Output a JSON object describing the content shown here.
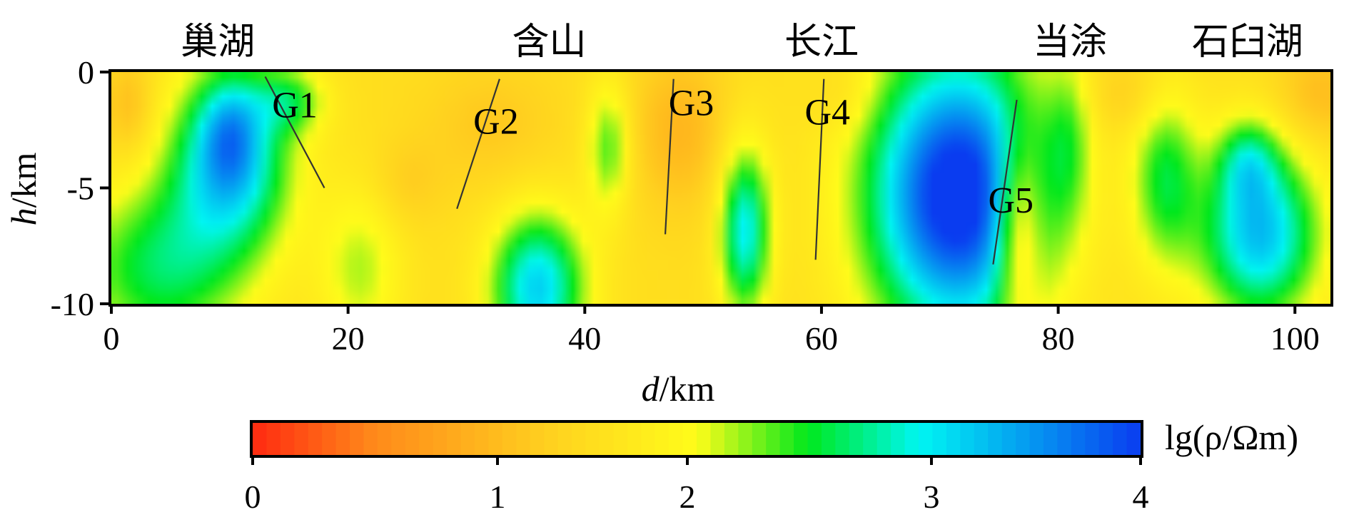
{
  "chart_data": {
    "type": "heatmap",
    "title": "",
    "place_labels": [
      {
        "text": "巢湖",
        "d": 9
      },
      {
        "text": "含山",
        "d": 37
      },
      {
        "text": "长江",
        "d": 60
      },
      {
        "text": "当涂",
        "d": 81
      },
      {
        "text": "石臼湖",
        "d": 96
      }
    ],
    "x_axis": {
      "label_var": "d",
      "label_unit": "/km",
      "range": [
        0,
        103
      ],
      "ticks": [
        0,
        20,
        40,
        60,
        80,
        100
      ],
      "tick_labels": [
        "0",
        "20",
        "40",
        "60",
        "80",
        "100"
      ]
    },
    "y_axis": {
      "label_var": "h",
      "label_unit": "/km",
      "range": [
        -10,
        0
      ],
      "ticks": [
        0,
        -5,
        -10
      ],
      "tick_labels": [
        "0",
        "-5",
        "-10"
      ]
    },
    "colorbar": {
      "label": "lg(ρ/Ωm)",
      "range": [
        0,
        4
      ],
      "ticks": [
        0,
        1,
        2,
        3,
        4
      ],
      "tick_labels": [
        "0",
        "1",
        "2",
        "3",
        "4"
      ],
      "colors": [
        "#ff2a10",
        "#ff8a1a",
        "#ffd21f",
        "#fffc1a",
        "#00e81c",
        "#00f6f2",
        "#0a3cf0"
      ],
      "stops": [
        0,
        0.55,
        1.35,
        2.0,
        2.5,
        3.0,
        4.0
      ]
    },
    "background_value": 1.55,
    "anomalies": [
      {
        "d": 1.5,
        "h": -1.5,
        "sd": 1.4,
        "sh": 1.5,
        "amp": -0.45
      },
      {
        "d": 10,
        "h": -3.8,
        "sd": 3.6,
        "sh": 2.8,
        "amp": 1.65
      },
      {
        "d": 10,
        "h": -2.5,
        "sd": 1.7,
        "sh": 1.6,
        "amp": 0.65
      },
      {
        "d": 4,
        "h": -8.5,
        "sd": 5.0,
        "sh": 2.6,
        "amp": 1.05
      },
      {
        "d": 15,
        "h": -1.2,
        "sd": 2.2,
        "sh": 1.0,
        "amp": 0.75
      },
      {
        "d": 21,
        "h": -8.5,
        "sd": 2.5,
        "sh": 2.5,
        "amp": 0.6
      },
      {
        "d": 25,
        "h": -4.8,
        "sd": 2.0,
        "sh": 1.3,
        "amp": -0.25
      },
      {
        "d": 36,
        "h": -9.3,
        "sd": 2.8,
        "sh": 2.3,
        "amp": 1.65
      },
      {
        "d": 42,
        "h": -3.2,
        "sd": 1.3,
        "sh": 2.0,
        "amp": 0.85
      },
      {
        "d": 32,
        "h": -2.3,
        "sd": 4.0,
        "sh": 2.0,
        "amp": -0.3
      },
      {
        "d": 48,
        "h": -2.5,
        "sd": 3.0,
        "sh": 2.5,
        "amp": -0.5
      },
      {
        "d": 53.5,
        "h": -6.8,
        "sd": 1.5,
        "sh": 2.6,
        "amp": 1.5
      },
      {
        "d": 71.5,
        "h": -5.3,
        "sd": 5.3,
        "sh": 4.4,
        "amp": 2.7
      },
      {
        "d": 76.5,
        "h": -6.5,
        "sd": 1.4,
        "sh": 2.8,
        "amp": -1.1
      },
      {
        "d": 81,
        "h": -2.8,
        "sd": 1.3,
        "sh": 2.6,
        "amp": 0.5
      },
      {
        "d": 89,
        "h": -4.5,
        "sd": 2.0,
        "sh": 2.8,
        "amp": 0.95
      },
      {
        "d": 97,
        "h": -7.0,
        "sd": 3.5,
        "sh": 2.6,
        "amp": 1.75
      },
      {
        "d": 96,
        "h": -3.8,
        "sd": 1.8,
        "sh": 1.3,
        "amp": 0.8
      },
      {
        "d": 102,
        "h": -1.0,
        "sd": 2.5,
        "sh": 1.5,
        "amp": -0.45
      },
      {
        "d": 86,
        "h": -1.0,
        "sd": 2.5,
        "sh": 1.2,
        "amp": -0.3
      },
      {
        "d": 62,
        "h": -1.0,
        "sd": 2.0,
        "sh": 1.2,
        "amp": -0.2
      }
    ],
    "faults": [
      {
        "name": "G1",
        "d1": 13,
        "h1": -0.2,
        "d2": 18,
        "h2": -5.0,
        "label_d": 15.5,
        "label_h": -1.4
      },
      {
        "name": "G2",
        "d1": 32.8,
        "h1": -0.3,
        "d2": 29.2,
        "h2": -5.9,
        "label_d": 32.5,
        "label_h": -2.1
      },
      {
        "name": "G3",
        "d1": 47.5,
        "h1": -0.3,
        "d2": 46.8,
        "h2": -7.0,
        "label_d": 49,
        "label_h": -1.3
      },
      {
        "name": "G4",
        "d1": 60.2,
        "h1": -0.3,
        "d2": 59.5,
        "h2": -8.1,
        "label_d": 60.5,
        "label_h": -1.7
      },
      {
        "name": "G5",
        "d1": 76.5,
        "h1": -1.2,
        "d2": 74.5,
        "h2": -8.3,
        "label_d": 76,
        "label_h": -5.5
      }
    ]
  }
}
